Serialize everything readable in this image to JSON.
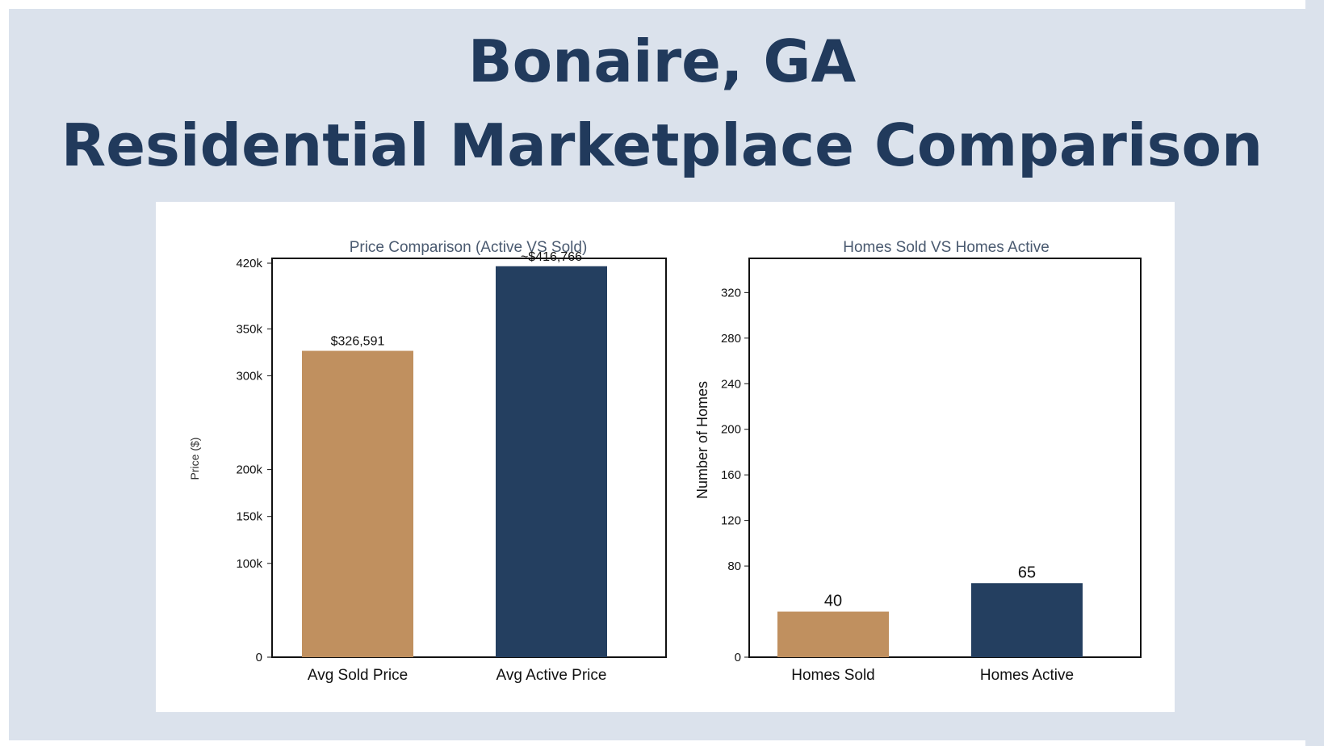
{
  "page": {
    "title_line_1": "Bonaire, GA",
    "title_line_2": "Residential Marketplace Comparison",
    "background_color": "#dbe2ec",
    "title_color": "#213a5c"
  },
  "chart_data": [
    {
      "type": "bar",
      "title": "Price Comparison (Active VS Sold)",
      "xlabel": "",
      "ylabel": "Price ($)",
      "categories": [
        "Avg Sold Price",
        "Avg Active Price"
      ],
      "values": [
        326591,
        416766
      ],
      "value_labels": [
        "$326,591",
        "~$416,766"
      ],
      "colors": [
        "#c0905f",
        "#243f60"
      ],
      "yticks": [
        0,
        100000,
        150000,
        200000,
        300000,
        350000,
        420000
      ],
      "ytick_labels": [
        "0",
        "100k",
        "150k",
        "200k",
        "300k",
        "350k",
        "420k"
      ],
      "ylim": [
        0,
        420000
      ],
      "grid": false,
      "legend": "none"
    },
    {
      "type": "bar",
      "title": "Homes Sold VS Homes Active",
      "xlabel": "",
      "ylabel": "Number of Homes",
      "categories": [
        "Homes Sold",
        "Homes Active"
      ],
      "values": [
        40,
        65
      ],
      "value_labels": [
        "40",
        "65"
      ],
      "colors": [
        "#c0905f",
        "#243f60"
      ],
      "yticks": [
        0,
        80,
        120,
        160,
        200,
        240,
        280,
        320
      ],
      "ytick_labels": [
        "0",
        "80",
        "120",
        "160",
        "200",
        "240",
        "280",
        "320"
      ],
      "ylim": [
        0,
        350
      ],
      "grid": false,
      "legend": "none"
    }
  ]
}
